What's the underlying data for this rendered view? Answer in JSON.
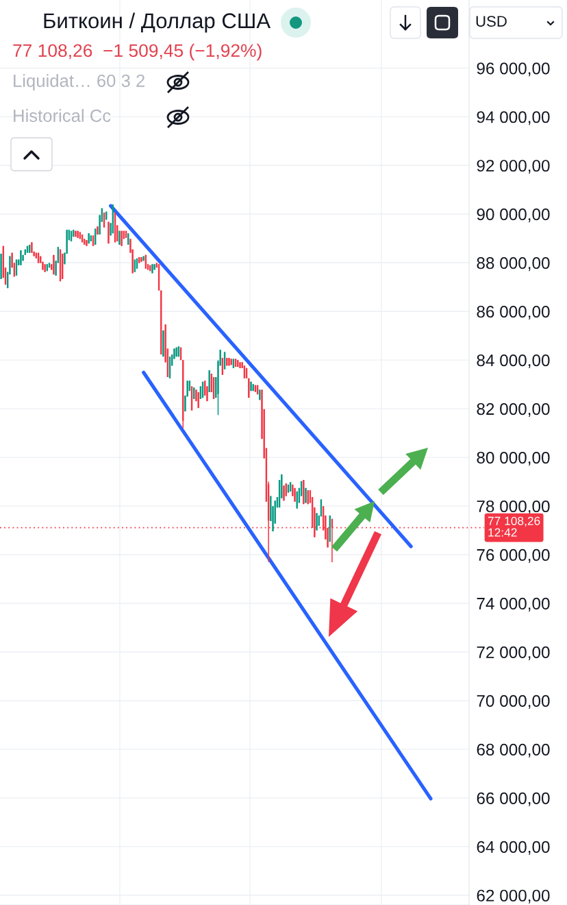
{
  "chart_data": {
    "type": "candlestick",
    "title": "Биткоин / Доллар США",
    "subtitle": "77 108,26  −1 509,45 (−1,92%)",
    "annotations": [
      "Liquidat… 60 3 2",
      "Historical Cc",
      "USD"
    ],
    "categories": [
      null,
      null,
      null,
      null,
      null,
      null,
      null,
      null,
      null,
      null,
      null,
      null,
      null,
      null,
      null,
      null,
      null,
      null,
      null,
      null,
      null,
      null,
      null,
      null,
      null,
      null,
      null,
      null,
      null,
      null,
      null,
      null,
      null,
      null,
      null,
      null,
      null,
      null,
      null,
      null,
      null,
      null,
      null,
      null,
      null,
      null,
      null,
      null,
      null,
      null,
      null,
      null,
      null,
      null,
      null,
      null,
      null,
      null,
      null,
      null,
      null,
      null,
      null,
      null,
      null,
      null,
      null,
      null,
      null,
      null,
      null,
      null,
      null,
      null,
      null,
      null,
      null,
      null,
      null,
      null,
      null,
      null,
      null,
      null,
      null,
      null,
      null,
      null,
      null,
      null,
      null,
      null,
      null,
      null,
      null,
      null,
      null,
      null,
      null,
      null,
      null,
      null,
      null,
      null,
      null,
      null,
      null,
      null,
      null,
      null,
      null,
      null,
      null,
      null,
      null,
      null,
      null,
      null,
      null,
      null,
      null,
      null,
      null,
      null,
      null,
      null,
      null,
      null,
      null,
      null,
      null,
      null,
      null,
      null,
      null,
      null,
      null,
      null,
      null,
      null,
      null,
      null,
      null,
      null,
      null,
      null,
      null,
      null,
      null,
      null,
      null,
      null,
      null,
      null,
      null,
      null,
      null,
      null,
      null,
      null,
      null,
      null,
      null,
      null,
      null,
      null,
      null,
      null,
      null,
      null,
      null,
      null,
      null,
      null,
      null,
      null,
      null,
      null,
      null,
      null,
      null,
      null,
      null,
      null,
      null,
      null,
      null,
      null,
      null,
      null,
      null,
      null,
      null,
      null,
      null,
      null,
      null,
      null,
      null,
      null,
      null,
      null,
      null,
      null,
      null,
      null,
      null,
      null,
      null,
      null,
      null,
      null,
      null,
      null
    ],
    "ohlc": [
      [
        87330,
        88370,
        87330,
        88370
      ],
      [
        88690,
        88690,
        87380,
        87380
      ],
      [
        87800,
        87800,
        87100,
        87100
      ],
      [
        86960,
        87620,
        86960,
        87620
      ],
      [
        87520,
        88270,
        87520,
        88270
      ],
      [
        88410,
        88410,
        87800,
        87800
      ],
      [
        87990,
        87990,
        87430,
        87430
      ],
      [
        87470,
        88130,
        87470,
        88130
      ],
      [
        87900,
        88130,
        87900,
        88130
      ],
      [
        87900,
        88510,
        87900,
        88510
      ],
      [
        88080,
        88320,
        88080,
        88320
      ],
      [
        88320,
        88550,
        88320,
        88550
      ],
      [
        88410,
        88690,
        88410,
        88690
      ],
      [
        88410,
        88740,
        88410,
        88740
      ],
      [
        88840,
        88840,
        88410,
        88410
      ],
      [
        88460,
        88460,
        88270,
        88270
      ],
      [
        88410,
        88410,
        88180,
        88180
      ],
      [
        88410,
        88410,
        87990,
        87990
      ],
      [
        88270,
        88270,
        87990,
        87990
      ],
      [
        88040,
        88040,
        87710,
        87710
      ],
      [
        87940,
        87940,
        87620,
        87620
      ],
      [
        87660,
        87940,
        87660,
        87940
      ],
      [
        87800,
        87990,
        87800,
        87990
      ],
      [
        87940,
        87940,
        87710,
        87710
      ],
      [
        88320,
        88320,
        87520,
        87520
      ],
      [
        87470,
        88080,
        87470,
        88080
      ],
      [
        87990,
        88650,
        87990,
        88650
      ],
      [
        88550,
        88550,
        87240,
        87240
      ],
      [
        88370,
        88370,
        87330,
        87330
      ],
      [
        87940,
        88410,
        87940,
        88410
      ],
      [
        88370,
        89350,
        88370,
        89350
      ],
      [
        88930,
        89350,
        88930,
        89350
      ],
      [
        88880,
        89310,
        88880,
        89310
      ],
      [
        89070,
        89350,
        89070,
        89350
      ],
      [
        89310,
        89310,
        89070,
        89070
      ],
      [
        89310,
        89310,
        89020,
        89020
      ],
      [
        89260,
        89260,
        88980,
        88980
      ],
      [
        89160,
        89160,
        88840,
        88840
      ],
      [
        88980,
        88980,
        88740,
        88740
      ],
      [
        88930,
        88930,
        88690,
        88690
      ],
      [
        88790,
        89210,
        88790,
        89210
      ],
      [
        88880,
        89120,
        88880,
        89120
      ],
      [
        89120,
        89120,
        88690,
        88690
      ],
      [
        88740,
        89400,
        88740,
        89400
      ],
      [
        89490,
        89490,
        89160,
        89160
      ],
      [
        89160,
        89960,
        89160,
        89960
      ],
      [
        89680,
        90240,
        89680,
        90240
      ],
      [
        90060,
        90060,
        89450,
        89450
      ],
      [
        89770,
        90100,
        89770,
        90100
      ],
      [
        89680,
        89680,
        88790,
        88790
      ],
      [
        89120,
        89630,
        89120,
        89630
      ],
      [
        89210,
        90390,
        89210,
        90390
      ],
      [
        90060,
        90060,
        88840,
        88840
      ],
      [
        89540,
        89540,
        88880,
        88880
      ],
      [
        88740,
        89310,
        88740,
        89310
      ],
      [
        89310,
        89310,
        88690,
        88690
      ],
      [
        89310,
        89310,
        88980,
        88980
      ],
      [
        89310,
        89310,
        89020,
        89020
      ],
      [
        88740,
        89210,
        88740,
        89210
      ],
      [
        88980,
        88980,
        88410,
        88410
      ],
      [
        88550,
        88550,
        87570,
        87570
      ],
      [
        87620,
        88130,
        87620,
        88130
      ],
      [
        87760,
        88180,
        87760,
        88180
      ],
      [
        88230,
        88230,
        87990,
        87990
      ],
      [
        88230,
        88230,
        88040,
        88040
      ],
      [
        88080,
        88270,
        88080,
        88270
      ],
      [
        88320,
        88320,
        87760,
        87760
      ],
      [
        87940,
        87940,
        87710,
        87710
      ],
      [
        87900,
        87900,
        87660,
        87660
      ],
      [
        87570,
        87940,
        87570,
        87940
      ],
      [
        87710,
        87940,
        87710,
        87940
      ],
      [
        87990,
        87990,
        87800,
        87800
      ],
      [
        87940,
        87940,
        86860,
        86860
      ],
      [
        86860,
        86860,
        84230,
        84230
      ],
      [
        84140,
        85220,
        84140,
        85220
      ],
      [
        85460,
        85460,
        83910,
        83910
      ],
      [
        84470,
        84470,
        83300,
        83300
      ],
      [
        83250,
        84140,
        83250,
        84140
      ],
      [
        83770,
        84230,
        83770,
        84230
      ],
      [
        84050,
        84470,
        84050,
        84470
      ],
      [
        84140,
        84520,
        84140,
        84520
      ],
      [
        84140,
        84560,
        84140,
        84560
      ],
      [
        84520,
        84520,
        84000,
        84000
      ],
      [
        84000,
        84000,
        81200,
        81500
      ],
      [
        81890,
        82540,
        81890,
        82540
      ],
      [
        82500,
        83150,
        82500,
        83150
      ],
      [
        82730,
        83150,
        82730,
        83150
      ],
      [
        82920,
        82920,
        81930,
        81930
      ],
      [
        82400,
        82870,
        82400,
        82870
      ],
      [
        82780,
        82780,
        82310,
        82310
      ],
      [
        82680,
        82680,
        82030,
        82030
      ],
      [
        82400,
        82920,
        82400,
        82920
      ],
      [
        82450,
        83110,
        82450,
        83110
      ],
      [
        83150,
        83150,
        82540,
        82540
      ],
      [
        82920,
        82920,
        82310,
        82310
      ],
      [
        82680,
        83580,
        82680,
        83580
      ],
      [
        83440,
        83440,
        82680,
        82680
      ],
      [
        83300,
        83300,
        82400,
        82400
      ],
      [
        82450,
        83300,
        82450,
        83300
      ],
      [
        82600,
        84000,
        81740,
        83950
      ],
      [
        83770,
        84420,
        83770,
        84420
      ],
      [
        84090,
        84090,
        83390,
        83390
      ],
      [
        83620,
        84330,
        83620,
        84330
      ],
      [
        84090,
        84090,
        83770,
        83770
      ],
      [
        84090,
        84090,
        83770,
        83770
      ],
      [
        84050,
        84050,
        83800,
        83800
      ],
      [
        83670,
        84050,
        83670,
        84050
      ],
      [
        84050,
        84050,
        83720,
        83720
      ],
      [
        84000,
        84000,
        83720,
        83720
      ],
      [
        83910,
        83910,
        83670,
        83670
      ],
      [
        83910,
        83910,
        83670,
        83670
      ],
      [
        83770,
        83770,
        83250,
        83250
      ],
      [
        83670,
        83670,
        83250,
        83250
      ],
      [
        83250,
        83250,
        82450,
        82450
      ],
      [
        82730,
        83110,
        82730,
        83110
      ],
      [
        82730,
        83010,
        82730,
        83010
      ],
      [
        82970,
        82970,
        82690,
        82690
      ],
      [
        82970,
        82970,
        82590,
        82590
      ],
      [
        82360,
        82780,
        82360,
        82780
      ],
      [
        82780,
        82780,
        80760,
        80760
      ],
      [
        81980,
        81980,
        79960,
        79960
      ],
      [
        80380,
        80380,
        78180,
        78180
      ],
      [
        78900,
        79000,
        75700,
        77400
      ],
      [
        77380,
        78410,
        77380,
        78410
      ],
      [
        76960,
        77990,
        76960,
        77990
      ],
      [
        77280,
        78220,
        77280,
        78220
      ],
      [
        77940,
        78370,
        77940,
        78370
      ],
      [
        77940,
        79070,
        77940,
        79070
      ],
      [
        78320,
        79300,
        78320,
        79300
      ],
      [
        78840,
        78840,
        78220,
        78220
      ],
      [
        78930,
        78930,
        78410,
        78410
      ],
      [
        78550,
        78880,
        78550,
        78880
      ],
      [
        78600,
        78980,
        78600,
        78980
      ],
      [
        78880,
        78880,
        78410,
        78410
      ],
      [
        78740,
        78740,
        78180,
        78180
      ],
      [
        77900,
        78600,
        77900,
        78600
      ],
      [
        78130,
        78740,
        78130,
        78740
      ],
      [
        78410,
        79020,
        78410,
        79020
      ],
      [
        79070,
        79070,
        78080,
        78080
      ],
      [
        78130,
        78740,
        78130,
        78740
      ],
      [
        78650,
        78650,
        78080,
        78080
      ],
      [
        78650,
        78650,
        78130,
        78130
      ],
      [
        78370,
        78370,
        77100,
        77100
      ],
      [
        77940,
        77940,
        76720,
        76720
      ],
      [
        77000,
        77710,
        77000,
        77710
      ],
      [
        77190,
        77610,
        77190,
        77610
      ],
      [
        77570,
        78270,
        77570,
        78270
      ],
      [
        77990,
        77990,
        77000,
        77000
      ],
      [
        77610,
        77610,
        76630,
        76630
      ],
      [
        77100,
        77100,
        76300,
        76300
      ],
      [
        76530,
        77610,
        76530,
        77610
      ],
      [
        77470,
        77470,
        75690,
        77110
      ],
      null,
      null,
      null,
      null,
      null,
      null,
      null,
      null,
      null,
      null,
      null,
      null,
      null,
      null,
      null,
      null,
      null,
      null,
      null,
      null,
      null,
      null,
      null,
      null,
      null,
      null,
      null,
      null,
      null,
      null,
      null,
      null,
      null,
      null,
      null,
      null,
      null,
      null,
      null,
      null,
      null,
      null,
      null,
      null,
      null,
      null,
      null,
      null,
      null,
      null,
      null,
      null,
      null,
      null,
      null,
      null,
      null,
      null,
      null,
      null,
      null,
      null
    ],
    "colors": [
      "#089981",
      "#f23645",
      "#f23645",
      "#089981",
      "#089981",
      "#f23645",
      "#f23645",
      "#089981",
      "#089981",
      "#089981",
      "#089981",
      "#089981",
      "#089981",
      "#089981",
      "#f23645",
      "#f23645",
      "#f23645",
      "#f23645",
      "#f23645",
      "#f23645",
      "#f23645",
      "#089981",
      "#089981",
      "#f23645",
      "#f23645",
      "#089981",
      "#089981",
      "#f23645",
      "#f23645",
      "#089981",
      "#089981",
      "#089981",
      "#089981",
      "#089981",
      "#f23645",
      "#f23645",
      "#f23645",
      "#f23645",
      "#f23645",
      "#f23645",
      "#089981",
      "#089981",
      "#f23645",
      "#089981",
      "#f23645",
      "#089981",
      "#089981",
      "#f23645",
      "#089981",
      "#f23645",
      "#089981",
      "#089981",
      "#f23645",
      "#f23645",
      "#089981",
      "#f23645",
      "#f23645",
      "#f23645",
      "#089981",
      "#f23645",
      "#f23645",
      "#089981",
      "#089981",
      "#f23645",
      "#f23645",
      "#089981",
      "#f23645",
      "#f23645",
      "#f23645",
      "#089981",
      "#089981",
      "#f23645",
      "#f23645",
      "#f23645",
      "#089981",
      "#f23645",
      "#f23645",
      "#089981",
      "#089981",
      "#089981",
      "#089981",
      "#089981",
      "#f23645",
      "#f23645",
      "#089981",
      "#089981",
      "#089981",
      "#f23645",
      "#089981",
      "#f23645",
      "#f23645",
      "#089981",
      "#089981",
      "#f23645",
      "#f23645",
      "#089981",
      "#f23645",
      "#f23645",
      "#089981",
      "#089981",
      "#089981",
      "#f23645",
      "#089981",
      "#f23645",
      "#f23645",
      "#f23645",
      "#089981",
      "#f23645",
      "#f23645",
      "#f23645",
      "#f23645",
      "#f23645",
      "#f23645",
      "#f23645",
      "#089981",
      "#089981",
      "#f23645",
      "#f23645",
      "#089981",
      "#f23645",
      "#f23645",
      "#f23645",
      "#f23645",
      "#089981",
      "#089981",
      "#089981",
      "#089981",
      "#089981",
      "#089981",
      "#f23645",
      "#f23645",
      "#089981",
      "#089981",
      "#f23645",
      "#f23645",
      "#089981",
      "#089981",
      "#089981",
      "#f23645",
      "#089981",
      "#f23645",
      "#f23645",
      "#f23645",
      "#f23645",
      "#089981",
      "#089981",
      "#089981",
      "#f23645",
      "#f23645",
      "#f23645",
      "#089981",
      "#f23645",
      null,
      null,
      null,
      null,
      null,
      null,
      null,
      null,
      null,
      null,
      null,
      null,
      null,
      null,
      null,
      null,
      null,
      null,
      null,
      null,
      null,
      null,
      null,
      null,
      null,
      null,
      null,
      null,
      null,
      null,
      null,
      null,
      null,
      null,
      null,
      null,
      null,
      null,
      null,
      null,
      null,
      null,
      null,
      null,
      null,
      null,
      null,
      null,
      null,
      null,
      null,
      null,
      null,
      null,
      null,
      null,
      null,
      null,
      null,
      null,
      null,
      null
    ],
    "series": [
      {
        "type": "line",
        "color": "#2962ff",
        "values": [
          null,
          null,
          null,
          null,
          null,
          null,
          null,
          null,
          null,
          null,
          null,
          null,
          null,
          null,
          null,
          null,
          null,
          null,
          null,
          null,
          null,
          null,
          null,
          null,
          null,
          null,
          null,
          null,
          null,
          null,
          null,
          null,
          null,
          null,
          null,
          null,
          null,
          null,
          null,
          null,
          null,
          null,
          null,
          null,
          null,
          null,
          null,
          null,
          null,
          null,
          90340,
          null,
          null,
          null,
          null,
          null,
          null,
          null,
          null,
          null,
          null,
          null,
          null,
          null,
          null,
          null,
          null,
          null,
          null,
          null,
          null,
          null,
          null,
          null,
          null,
          null,
          null,
          null,
          null,
          null,
          null,
          null,
          null,
          null,
          null,
          null,
          null,
          null,
          null,
          null,
          null,
          null,
          null,
          null,
          null,
          null,
          null,
          null,
          null,
          null,
          null,
          null,
          null,
          null,
          null,
          null,
          null,
          null,
          null,
          null,
          null,
          null,
          null,
          null,
          null,
          null,
          null,
          null,
          null,
          null,
          null,
          null,
          null,
          null,
          null,
          null,
          null,
          null,
          null,
          null,
          null,
          null,
          null,
          null,
          null,
          null,
          null,
          null,
          null,
          null,
          null,
          null,
          null,
          null,
          null,
          null,
          null,
          null,
          null,
          null,
          null,
          null,
          null,
          null,
          null,
          null,
          null,
          null,
          null,
          null,
          null,
          null,
          null,
          null,
          null,
          null,
          null,
          null,
          null,
          null,
          null,
          null,
          null,
          null,
          null,
          null,
          null,
          null,
          null,
          null,
          null,
          null,
          null,
          null,
          null,
          null,
          null,
          76340,
          null,
          null,
          null,
          null,
          null,
          null,
          null,
          null,
          null,
          null,
          null,
          null,
          null,
          null,
          null,
          null,
          null,
          null,
          null,
          null,
          null,
          null,
          null,
          null,
          null,
          null
        ]
      },
      {
        "type": "line",
        "color": "#2962ff",
        "values": [
          null,
          null,
          null,
          null,
          null,
          null,
          null,
          null,
          null,
          null,
          null,
          null,
          null,
          null,
          null,
          null,
          null,
          null,
          null,
          null,
          null,
          null,
          null,
          null,
          null,
          null,
          null,
          null,
          null,
          null,
          null,
          null,
          null,
          null,
          null,
          null,
          null,
          null,
          null,
          null,
          null,
          null,
          null,
          null,
          null,
          null,
          null,
          null,
          null,
          null,
          null,
          null,
          null,
          null,
          null,
          null,
          null,
          null,
          null,
          null,
          null,
          null,
          null,
          null,
          null,
          83490,
          null,
          null,
          null,
          null,
          null,
          null,
          null,
          null,
          null,
          null,
          null,
          null,
          null,
          null,
          null,
          null,
          null,
          null,
          null,
          null,
          null,
          null,
          null,
          null,
          null,
          null,
          null,
          null,
          null,
          null,
          null,
          null,
          null,
          null,
          null,
          null,
          null,
          null,
          null,
          null,
          null,
          null,
          null,
          null,
          null,
          null,
          null,
          null,
          null,
          null,
          null,
          null,
          null,
          null,
          null,
          null,
          null,
          null,
          null,
          null,
          null,
          null,
          null,
          null,
          null,
          null,
          null,
          null,
          null,
          null,
          null,
          null,
          null,
          null,
          null,
          null,
          null,
          null,
          null,
          null,
          null,
          null,
          null,
          null,
          null,
          null,
          null,
          null,
          null,
          null,
          null,
          null,
          null,
          null,
          null,
          null,
          null,
          null,
          null,
          null,
          null,
          null,
          null,
          null,
          null,
          null,
          null,
          null,
          null,
          null,
          null,
          null,
          null,
          null,
          null,
          null,
          null,
          null,
          null,
          null,
          null,
          null,
          null,
          null,
          null,
          null,
          null,
          null,
          null,
          null,
          65970,
          null,
          null,
          null,
          null,
          null,
          null,
          null,
          null,
          null,
          null,
          null,
          null,
          null,
          null,
          null,
          null,
          null
        ]
      }
    ],
    "ylim": [
      61600,
      98800
    ],
    "yticks": [
      {
        "value": 62000,
        "label": "62 000,00"
      },
      {
        "value": 64000,
        "label": "64 000,00"
      },
      {
        "value": 66000,
        "label": "66 000,00"
      },
      {
        "value": 68000,
        "label": "68 000,00"
      },
      {
        "value": 70000,
        "label": "70 000,00"
      },
      {
        "value": 72000,
        "label": "72 000,00"
      },
      {
        "value": 74000,
        "label": "74 000,00"
      },
      {
        "value": 76000,
        "label": "76 000,00"
      },
      {
        "value": 78000,
        "label": "78 000,00"
      },
      {
        "value": 80000,
        "label": "80 000,00"
      },
      {
        "value": 82000,
        "label": "82 000,00"
      },
      {
        "value": 84000,
        "label": "84 000,00"
      },
      {
        "value": 86000,
        "label": "86 000,00"
      },
      {
        "value": 88000,
        "label": "88 000,00"
      },
      {
        "value": 90000,
        "label": "90 000,00"
      },
      {
        "value": 92000,
        "label": "92 000,00"
      },
      {
        "value": 94000,
        "label": "94 000,00"
      },
      {
        "value": 96000,
        "label": "96 000,00"
      }
    ],
    "ref_lines": [
      {
        "axis": "y",
        "value": 77108.26,
        "label": "77 108,26\n12:42",
        "color": "#f23645",
        "line_style": "dotted"
      }
    ],
    "tick_labels": "y",
    "grid": true
  }
}
